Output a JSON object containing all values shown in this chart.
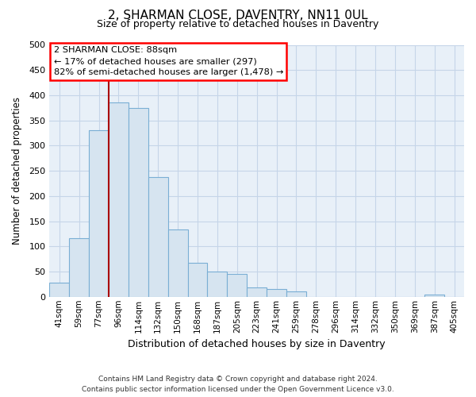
{
  "title": "2, SHARMAN CLOSE, DAVENTRY, NN11 0UL",
  "subtitle": "Size of property relative to detached houses in Daventry",
  "xlabel": "Distribution of detached houses by size in Daventry",
  "ylabel": "Number of detached properties",
  "bar_color": "#d6e4f0",
  "bar_edge_color": "#7aaed4",
  "categories": [
    "41sqm",
    "59sqm",
    "77sqm",
    "96sqm",
    "114sqm",
    "132sqm",
    "150sqm",
    "168sqm",
    "187sqm",
    "205sqm",
    "223sqm",
    "241sqm",
    "259sqm",
    "278sqm",
    "296sqm",
    "314sqm",
    "332sqm",
    "350sqm",
    "369sqm",
    "387sqm",
    "405sqm"
  ],
  "values": [
    28,
    117,
    330,
    385,
    375,
    237,
    133,
    68,
    50,
    46,
    19,
    16,
    11,
    0,
    0,
    0,
    0,
    0,
    0,
    5,
    0
  ],
  "ylim": [
    0,
    500
  ],
  "yticks": [
    0,
    50,
    100,
    150,
    200,
    250,
    300,
    350,
    400,
    450,
    500
  ],
  "annotation_title": "2 SHARMAN CLOSE: 88sqm",
  "annotation_line1": "← 17% of detached houses are smaller (297)",
  "annotation_line2": "82% of semi-detached houses are larger (1,478) →",
  "footer_line1": "Contains HM Land Registry data © Crown copyright and database right 2024.",
  "footer_line2": "Contains public sector information licensed under the Open Government Licence v3.0.",
  "bg_color": "#ffffff",
  "plot_bg_color": "#e8f0f8",
  "grid_color": "#c5d5e8",
  "red_line_color": "#aa0000"
}
